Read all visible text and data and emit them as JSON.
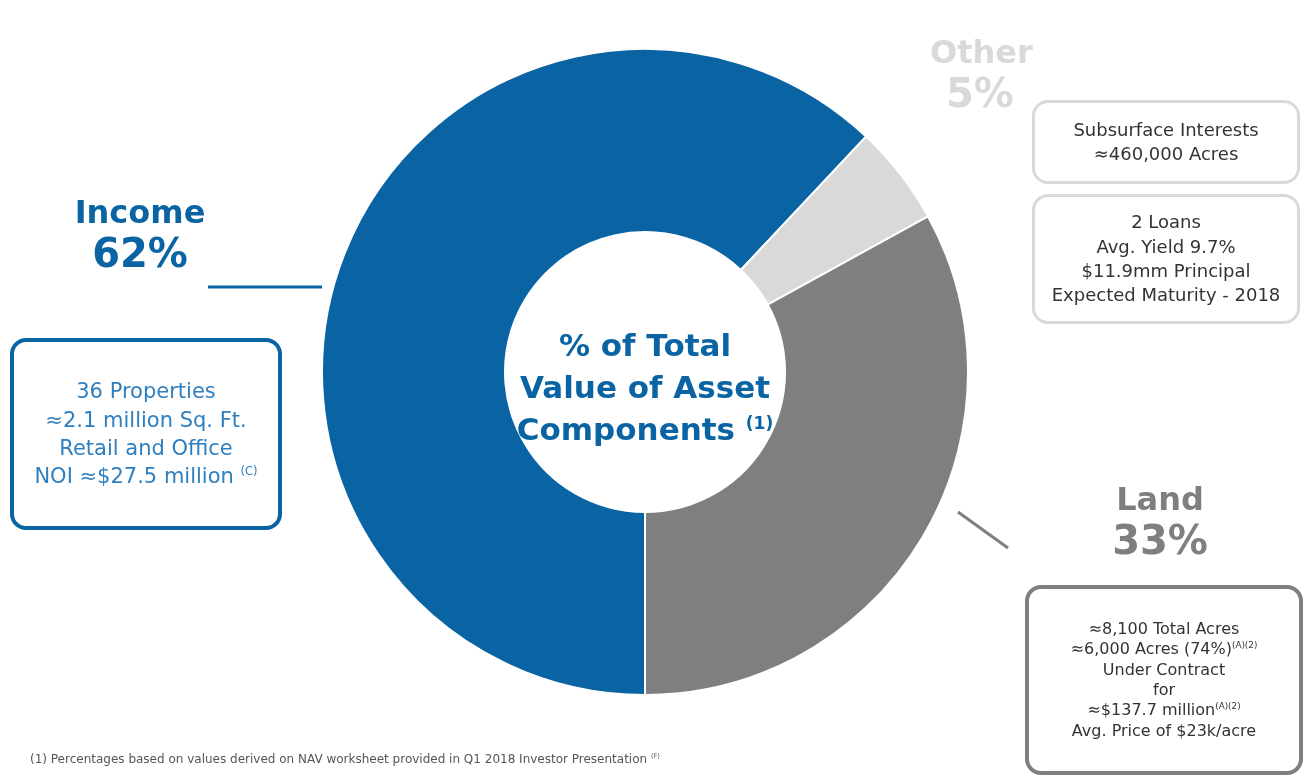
{
  "chart_data": {
    "type": "donut",
    "title": "% of Total Value of Asset Components $^{(1)}$",
    "categories": [
      "Income",
      "Other",
      "Land"
    ],
    "values": [
      62,
      5,
      33
    ],
    "colors": [
      "#0a64a4",
      "#d9d9d9",
      "#7f7f7f"
    ],
    "value_labels": [
      "62%",
      "5%",
      "33%"
    ],
    "annotations": [
      "36 Properties\n≈2.1 million Sq. Ft.\nRetail and Office\nNOI ≈$27.5 million $^{(C)}$",
      "Subsurface Interests\n≈460,000 Acres",
      "2 Loans\nAvg. Yield 9.7%\n$11.9mm Principal\nExpected Maturity - 2018",
      "≈8,100 Total Acres\n≈6,000 Acres (74%)$^{(A)(2)}$\nUnder Contract\nfor\n≈$137.7 million$^{(A)(2)}$\nAvg. Price of $23k/acre",
      "(1)   Percentages based on values derived on NAV worksheet provided in Q1 2018 Investor Presentation $^{(F)}$"
    ]
  }
}
